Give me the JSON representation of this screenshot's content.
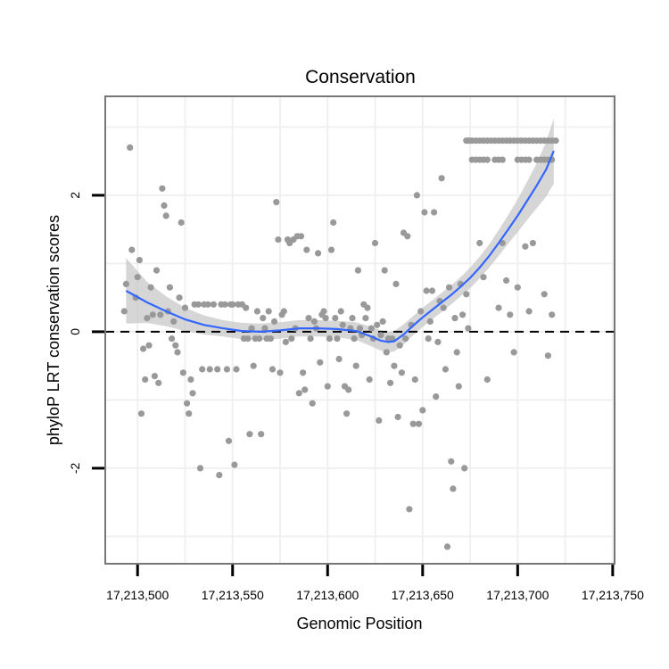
{
  "chart_data": {
    "type": "scatter",
    "title": "Conservation",
    "xlabel": "Genomic Position",
    "ylabel": "phyloP LRT conservation scores",
    "xlim": [
      17213483,
      17213751
    ],
    "ylim": [
      -3.4,
      3.45
    ],
    "x_ticks": [
      17213500,
      17213550,
      17213600,
      17213650,
      17213700,
      17213750
    ],
    "x_tick_labels": [
      "17,213,500",
      "17,213,550",
      "17,213,600",
      "17,213,650",
      "17,213,700",
      "17,213,750"
    ],
    "y_ticks": [
      -2,
      0,
      2
    ],
    "y_tick_labels": [
      "-2",
      "0",
      "2"
    ],
    "reference_line": {
      "y": 0,
      "style": "dashed"
    },
    "grid": true,
    "points": [
      [
        17213496,
        2.7
      ],
      [
        17213493,
        0.3
      ],
      [
        17213494,
        0.7
      ],
      [
        17213497,
        1.2
      ],
      [
        17213499,
        0.5
      ],
      [
        17213500,
        0.8
      ],
      [
        17213501,
        1.05
      ],
      [
        17213502,
        -1.2
      ],
      [
        17213503,
        -0.25
      ],
      [
        17213504,
        -0.7
      ],
      [
        17213505,
        0.2
      ],
      [
        17213506,
        -0.2
      ],
      [
        17213507,
        0.65
      ],
      [
        17213508,
        0.25
      ],
      [
        17213509,
        -0.65
      ],
      [
        17213510,
        0.9
      ],
      [
        17213511,
        -0.75
      ],
      [
        17213512,
        0.25
      ],
      [
        17213513,
        2.1
      ],
      [
        17213514,
        1.85
      ],
      [
        17213515,
        1.7
      ],
      [
        17213516,
        0.3
      ],
      [
        17213517,
        0.65
      ],
      [
        17213518,
        -0.1
      ],
      [
        17213519,
        0.15
      ],
      [
        17213520,
        -0.2
      ],
      [
        17213521,
        -0.3
      ],
      [
        17213522,
        0.5
      ],
      [
        17213523,
        1.6
      ],
      [
        17213524,
        -0.6
      ],
      [
        17213525,
        0.35
      ],
      [
        17213526,
        -1.05
      ],
      [
        17213527,
        -1.2
      ],
      [
        17213528,
        -0.7
      ],
      [
        17213529,
        -0.9
      ],
      [
        17213530,
        0.4
      ],
      [
        17213532,
        0.4
      ],
      [
        17213533,
        -2.0
      ],
      [
        17213534,
        -0.55
      ],
      [
        17213535,
        0.4
      ],
      [
        17213537,
        0.4
      ],
      [
        17213538,
        -0.55
      ],
      [
        17213540,
        0.4
      ],
      [
        17213542,
        -0.55
      ],
      [
        17213543,
        -2.1
      ],
      [
        17213544,
        0.4
      ],
      [
        17213546,
        0.4
      ],
      [
        17213547,
        -0.55
      ],
      [
        17213548,
        -1.6
      ],
      [
        17213549,
        0.4
      ],
      [
        17213550,
        0.4
      ],
      [
        17213551,
        -1.95
      ],
      [
        17213552,
        -0.55
      ],
      [
        17213553,
        0.4
      ],
      [
        17213555,
        0.4
      ],
      [
        17213556,
        -0.1
      ],
      [
        17213557,
        0.35
      ],
      [
        17213558,
        -0.1
      ],
      [
        17213559,
        -1.5
      ],
      [
        17213560,
        0.05
      ],
      [
        17213561,
        -0.5
      ],
      [
        17213562,
        -0.1
      ],
      [
        17213563,
        0.3
      ],
      [
        17213564,
        -0.1
      ],
      [
        17213565,
        -1.5
      ],
      [
        17213566,
        0.2
      ],
      [
        17213567,
        0.05
      ],
      [
        17213568,
        -0.1
      ],
      [
        17213569,
        0.3
      ],
      [
        17213570,
        -0.1
      ],
      [
        17213571,
        -0.55
      ],
      [
        17213572,
        0.15
      ],
      [
        17213573,
        1.9
      ],
      [
        17213574,
        1.35
      ],
      [
        17213575,
        -0.6
      ],
      [
        17213576,
        0.25
      ],
      [
        17213577,
        0.3
      ],
      [
        17213578,
        -0.15
      ],
      [
        17213579,
        1.35
      ],
      [
        17213580,
        1.3
      ],
      [
        17213581,
        -0.1
      ],
      [
        17213582,
        1.35
      ],
      [
        17213583,
        0.05
      ],
      [
        17213584,
        1.4
      ],
      [
        17213585,
        -0.9
      ],
      [
        17213586,
        1.4
      ],
      [
        17213587,
        -0.6
      ],
      [
        17213588,
        -0.85
      ],
      [
        17213589,
        1.2
      ],
      [
        17213590,
        0.2
      ],
      [
        17213591,
        -0.1
      ],
      [
        17213592,
        -1.05
      ],
      [
        17213593,
        0.15
      ],
      [
        17213594,
        0.05
      ],
      [
        17213595,
        1.15
      ],
      [
        17213596,
        -0.45
      ],
      [
        17213597,
        0.25
      ],
      [
        17213598,
        0.3
      ],
      [
        17213599,
        0.2
      ],
      [
        17213600,
        -0.8
      ],
      [
        17213601,
        -0.1
      ],
      [
        17213602,
        1.2
      ],
      [
        17213603,
        1.6
      ],
      [
        17213604,
        0.2
      ],
      [
        17213605,
        -0.1
      ],
      [
        17213606,
        -0.4
      ],
      [
        17213607,
        0.3
      ],
      [
        17213608,
        0.1
      ],
      [
        17213609,
        -0.8
      ],
      [
        17213610,
        -1.2
      ],
      [
        17213611,
        -0.85
      ],
      [
        17213612,
        0.05
      ],
      [
        17213613,
        0.2
      ],
      [
        17213614,
        -0.1
      ],
      [
        17213615,
        -0.5
      ],
      [
        17213616,
        0.9
      ],
      [
        17213617,
        0.05
      ],
      [
        17213618,
        -0.05
      ],
      [
        17213619,
        0.4
      ],
      [
        17213620,
        0.2
      ],
      [
        17213621,
        0.35
      ],
      [
        17213622,
        -0.7
      ],
      [
        17213623,
        0.05
      ],
      [
        17213624,
        -0.1
      ],
      [
        17213625,
        1.3
      ],
      [
        17213626,
        0.1
      ],
      [
        17213627,
        -1.3
      ],
      [
        17213628,
        -0.05
      ],
      [
        17213629,
        0.15
      ],
      [
        17213630,
        0.9
      ],
      [
        17213631,
        -0.3
      ],
      [
        17213632,
        -0.1
      ],
      [
        17213633,
        -0.75
      ],
      [
        17213634,
        -0.1
      ],
      [
        17213635,
        -0.5
      ],
      [
        17213636,
        0.7
      ],
      [
        17213637,
        -1.25
      ],
      [
        17213638,
        -0.2
      ],
      [
        17213639,
        -0.6
      ],
      [
        17213640,
        1.45
      ],
      [
        17213641,
        -0.1
      ],
      [
        17213642,
        1.4
      ],
      [
        17213643,
        -2.6
      ],
      [
        17213644,
        0.1
      ],
      [
        17213645,
        -1.35
      ],
      [
        17213646,
        -0.7
      ],
      [
        17213647,
        2.0
      ],
      [
        17213648,
        -1.35
      ],
      [
        17213649,
        0.3
      ],
      [
        17213650,
        -1.15
      ],
      [
        17213651,
        1.75
      ],
      [
        17213652,
        0.6
      ],
      [
        17213653,
        -0.1
      ],
      [
        17213654,
        0.15
      ],
      [
        17213655,
        0.6
      ],
      [
        17213656,
        1.75
      ],
      [
        17213657,
        -0.95
      ],
      [
        17213658,
        -0.15
      ],
      [
        17213659,
        0.45
      ],
      [
        17213660,
        2.25
      ],
      [
        17213661,
        0.35
      ],
      [
        17213662,
        -0.55
      ],
      [
        17213663,
        -3.15
      ],
      [
        17213664,
        0.65
      ],
      [
        17213665,
        -1.9
      ],
      [
        17213666,
        -2.3
      ],
      [
        17213667,
        0.2
      ],
      [
        17213668,
        -0.3
      ],
      [
        17213669,
        -0.8
      ],
      [
        17213670,
        0.7
      ],
      [
        17213671,
        0.25
      ],
      [
        17213672,
        -2.0
      ],
      [
        17213673,
        0.55
      ],
      [
        17213674,
        0.05
      ],
      [
        17213680,
        1.3
      ],
      [
        17213682,
        0.8
      ],
      [
        17213684,
        -0.7
      ],
      [
        17213690,
        0.35
      ],
      [
        17213692,
        1.3
      ],
      [
        17213694,
        0.75
      ],
      [
        17213696,
        0.25
      ],
      [
        17213698,
        -0.3
      ],
      [
        17213700,
        0.65
      ],
      [
        17213704,
        1.25
      ],
      [
        17213706,
        0.3
      ],
      [
        17213708,
        1.3
      ],
      [
        17213714,
        0.55
      ],
      [
        17213716,
        -0.35
      ],
      [
        17213718,
        0.25
      ]
    ],
    "capped_points_upper": {
      "y": 2.8,
      "x": [
        17213673,
        17213674,
        17213675,
        17213676,
        17213678,
        17213680,
        17213682,
        17213684,
        17213686,
        17213688,
        17213690,
        17213692,
        17213694,
        17213696,
        17213698,
        17213700,
        17213702,
        17213704,
        17213706,
        17213708,
        17213710,
        17213712,
        17213714,
        17213716,
        17213718,
        17213720
      ]
    },
    "capped_points_lower": {
      "y": 2.52,
      "x": [
        17213676,
        17213678,
        17213680,
        17213682,
        17213684,
        17213688,
        17213690,
        17213692,
        17213700,
        17213702,
        17213704,
        17213706,
        17213710,
        17213712,
        17213714,
        17213716,
        17213718
      ]
    },
    "smooth_fit": {
      "method": "loess",
      "x": [
        17213494,
        17213505,
        17213515,
        17213525,
        17213535,
        17213545,
        17213555,
        17213565,
        17213575,
        17213585,
        17213595,
        17213605,
        17213615,
        17213622,
        17213628,
        17213632,
        17213635,
        17213640,
        17213645,
        17213650,
        17213655,
        17213660,
        17213665,
        17213670,
        17213675,
        17213680,
        17213685,
        17213690,
        17213695,
        17213700,
        17213705,
        17213710,
        17213715,
        17213719
      ],
      "y": [
        0.6,
        0.43,
        0.3,
        0.18,
        0.1,
        0.05,
        0.01,
        0.0,
        0.02,
        0.05,
        0.05,
        0.04,
        0.01,
        -0.06,
        -0.13,
        -0.15,
        -0.14,
        -0.04,
        0.09,
        0.21,
        0.32,
        0.43,
        0.54,
        0.66,
        0.79,
        0.94,
        1.11,
        1.3,
        1.5,
        1.7,
        1.92,
        2.14,
        2.38,
        2.65
      ],
      "se_halfwidth": [
        0.48,
        0.3,
        0.22,
        0.17,
        0.14,
        0.12,
        0.12,
        0.12,
        0.12,
        0.12,
        0.12,
        0.12,
        0.13,
        0.14,
        0.15,
        0.15,
        0.15,
        0.15,
        0.14,
        0.14,
        0.14,
        0.14,
        0.14,
        0.14,
        0.15,
        0.16,
        0.17,
        0.19,
        0.21,
        0.24,
        0.28,
        0.33,
        0.4,
        0.48
      ]
    },
    "colors": {
      "points": "#999999",
      "smooth_line": "#3366ff",
      "ribbon": "#c8c8c8",
      "panel_border": "#777777",
      "grid": "#f0f0f0"
    }
  }
}
